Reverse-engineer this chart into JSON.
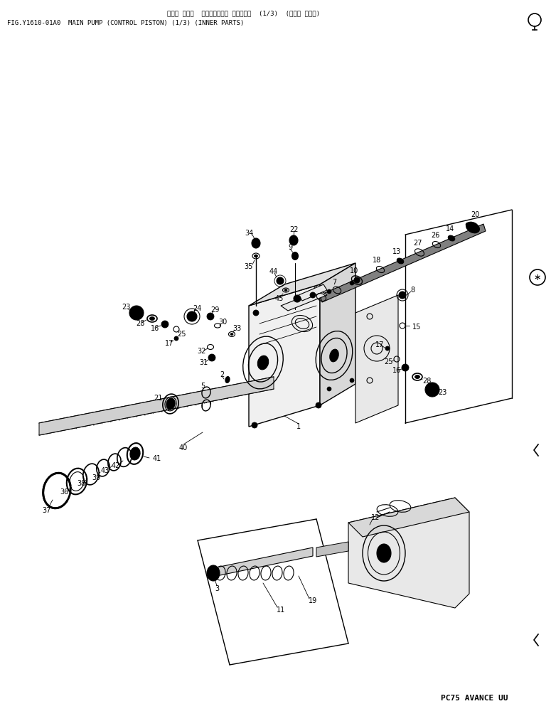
{
  "title_jp": "メイン ポンプ  （コントロール ピストン）  (1/3)  (インナ パーツ)",
  "title_en": "FIG.Y1610-01A0  MAIN PUMP (CONTROL PISTON) (1/3) (INNER PARTS)",
  "footer": "PC75 AVANCE UU",
  "bg_color": "#ffffff",
  "lc": "#000000",
  "tc": "#000000",
  "fig_width": 7.75,
  "fig_height": 10.14,
  "dpi": 100
}
